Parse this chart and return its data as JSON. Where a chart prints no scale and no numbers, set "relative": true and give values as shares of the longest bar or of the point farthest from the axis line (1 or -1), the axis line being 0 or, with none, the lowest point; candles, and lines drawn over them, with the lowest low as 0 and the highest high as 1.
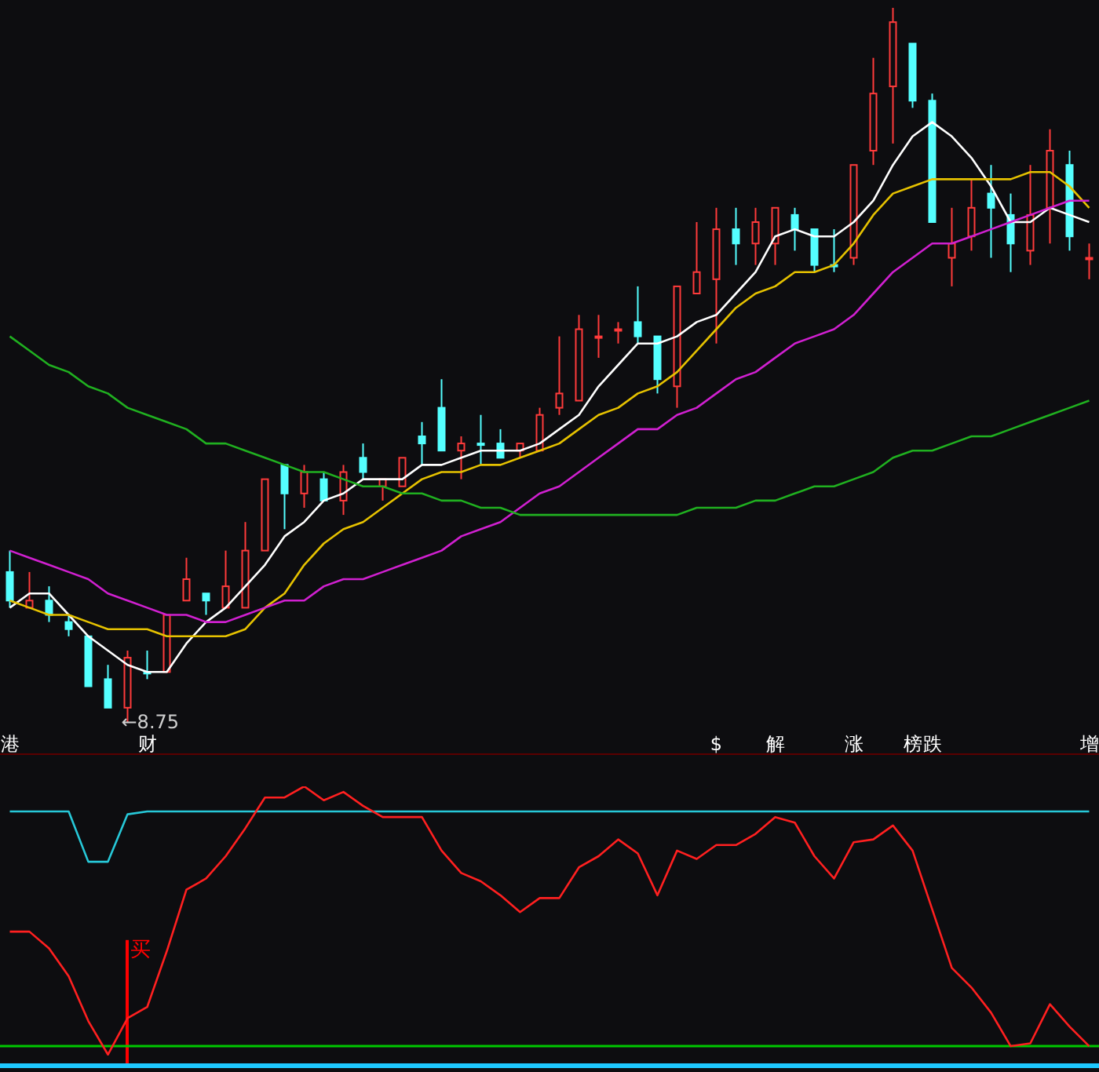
{
  "chart_data": [
    {
      "type": "candlestick",
      "relative": true,
      "tick_labels": "x",
      "categories": [
        "港",
        null,
        null,
        null,
        null,
        null,
        null,
        "财",
        null,
        null,
        null,
        null,
        null,
        null,
        null,
        null,
        null,
        null,
        null,
        null,
        null,
        null,
        null,
        null,
        null,
        null,
        null,
        null,
        null,
        null,
        null,
        null,
        null,
        null,
        null,
        null,
        "$",
        null,
        null,
        "解",
        null,
        null,
        null,
        "涨",
        null,
        null,
        "榜",
        "跌",
        null,
        null,
        null,
        null,
        null,
        null,
        null,
        "增"
      ],
      "ohlc": [
        [
          0.21,
          0.24,
          0.16,
          0.17
        ],
        [
          0.16,
          0.21,
          0.16,
          0.17
        ],
        [
          0.17,
          0.19,
          0.14,
          0.15
        ],
        [
          0.14,
          0.15,
          0.12,
          0.13
        ],
        [
          0.12,
          0.12,
          0.05,
          0.05
        ],
        [
          0.06,
          0.08,
          0.02,
          0.02
        ],
        [
          0.02,
          0.1,
          0,
          0.09
        ],
        [
          0.07,
          0.1,
          0.06,
          0.07
        ],
        [
          0.07,
          0.15,
          0.07,
          0.15
        ],
        [
          0.17,
          0.23,
          0.17,
          0.2
        ],
        [
          0.18,
          0.18,
          0.15,
          0.17
        ],
        [
          0.16,
          0.24,
          0.16,
          0.19
        ],
        [
          0.16,
          0.28,
          0.16,
          0.24
        ],
        [
          0.24,
          0.34,
          0.24,
          0.34
        ],
        [
          0.36,
          0.36,
          0.27,
          0.32
        ],
        [
          0.32,
          0.36,
          0.3,
          0.35
        ],
        [
          0.34,
          0.35,
          0.31,
          0.31
        ],
        [
          0.31,
          0.36,
          0.29,
          0.35
        ],
        [
          0.37,
          0.39,
          0.34,
          0.35
        ],
        [
          0.33,
          0.34,
          0.31,
          0.34
        ],
        [
          0.33,
          0.37,
          0.33,
          0.37
        ],
        [
          0.4,
          0.42,
          0.36,
          0.39
        ],
        [
          0.44,
          0.48,
          0.38,
          0.38
        ],
        [
          0.38,
          0.4,
          0.34,
          0.39
        ],
        [
          0.39,
          0.43,
          0.36,
          0.39
        ],
        [
          0.39,
          0.41,
          0.37,
          0.37
        ],
        [
          0.38,
          0.39,
          0.37,
          0.39
        ],
        [
          0.38,
          0.44,
          0.38,
          0.43
        ],
        [
          0.44,
          0.54,
          0.43,
          0.46
        ],
        [
          0.45,
          0.57,
          0.45,
          0.55
        ],
        [
          0.54,
          0.57,
          0.51,
          0.54
        ],
        [
          0.55,
          0.56,
          0.53,
          0.55
        ],
        [
          0.56,
          0.61,
          0.53,
          0.54
        ],
        [
          0.54,
          0.54,
          0.46,
          0.48
        ],
        [
          0.47,
          0.61,
          0.44,
          0.61
        ],
        [
          0.6,
          0.7,
          0.6,
          0.63
        ],
        [
          0.62,
          0.72,
          0.53,
          0.69
        ],
        [
          0.69,
          0.72,
          0.64,
          0.67
        ],
        [
          0.67,
          0.72,
          0.64,
          0.7
        ],
        [
          0.67,
          0.72,
          0.64,
          0.72
        ],
        [
          0.71,
          0.72,
          0.66,
          0.69
        ],
        [
          0.69,
          0.69,
          0.63,
          0.64
        ],
        [
          0.64,
          0.69,
          0.63,
          0.64
        ],
        [
          0.65,
          0.78,
          0.64,
          0.78
        ],
        [
          0.8,
          0.93,
          0.78,
          0.88
        ],
        [
          0.89,
          1,
          0.81,
          0.98
        ],
        [
          0.95,
          0.95,
          0.86,
          0.87
        ],
        [
          0.87,
          0.88,
          0.7,
          0.7
        ],
        [
          0.65,
          0.72,
          0.61,
          0.67
        ],
        [
          0.68,
          0.76,
          0.66,
          0.72
        ],
        [
          0.74,
          0.78,
          0.65,
          0.72
        ],
        [
          0.71,
          0.74,
          0.63,
          0.67
        ],
        [
          0.66,
          0.78,
          0.64,
          0.71
        ],
        [
          0.72,
          0.83,
          0.67,
          0.8
        ],
        [
          0.78,
          0.8,
          0.66,
          0.68
        ],
        [
          0.65,
          0.67,
          0.62,
          0.65
        ]
      ],
      "colors": [
        "#54ffff",
        "#ff3b3b",
        "#54ffff",
        "#54ffff",
        "#54ffff",
        "#54ffff",
        "#ff3b3b",
        "#54ffff",
        "#ff3b3b",
        "#ff3b3b",
        "#54ffff",
        "#ff3b3b",
        "#ff3b3b",
        "#ff3b3b",
        "#54ffff",
        "#ff3b3b",
        "#54ffff",
        "#ff3b3b",
        "#54ffff",
        "#ff3b3b",
        "#ff3b3b",
        "#54ffff",
        "#54ffff",
        "#ff3b3b",
        "#54ffff",
        "#54ffff",
        "#ff3b3b",
        "#ff3b3b",
        "#ff3b3b",
        "#ff3b3b",
        "#ff3b3b",
        "#ff3b3b",
        "#54ffff",
        "#54ffff",
        "#ff3b3b",
        "#ff3b3b",
        "#ff3b3b",
        "#54ffff",
        "#ff3b3b",
        "#ff3b3b",
        "#54ffff",
        "#54ffff",
        "#54ffff",
        "#ff3b3b",
        "#ff3b3b",
        "#ff3b3b",
        "#54ffff",
        "#54ffff",
        "#ff3b3b",
        "#ff3b3b",
        "#54ffff",
        "#54ffff",
        "#ff3b3b",
        "#ff3b3b",
        "#54ffff",
        "#ff3b3b"
      ],
      "series": [
        {
          "type": "line",
          "color": "#ffffff",
          "values": [
            0.16,
            0.18,
            0.18,
            0.15,
            0.12,
            0.1,
            0.08,
            0.07,
            0.07,
            0.11,
            0.14,
            0.16,
            0.19,
            0.22,
            0.26,
            0.28,
            0.31,
            0.32,
            0.34,
            0.34,
            0.34,
            0.36,
            0.36,
            0.37,
            0.38,
            0.38,
            0.38,
            0.39,
            0.41,
            0.43,
            0.47,
            0.5,
            0.53,
            0.53,
            0.54,
            0.56,
            0.57,
            0.6,
            0.63,
            0.68,
            0.69,
            0.68,
            0.68,
            0.7,
            0.73,
            0.78,
            0.82,
            0.84,
            0.82,
            0.79,
            0.75,
            0.7,
            0.7,
            0.72,
            0.71,
            0.7
          ]
        },
        {
          "type": "line",
          "color": "#e6c200",
          "values": [
            0.17,
            0.16,
            0.15,
            0.15,
            0.14,
            0.13,
            0.13,
            0.13,
            0.12,
            0.12,
            0.12,
            0.12,
            0.13,
            0.16,
            0.18,
            0.22,
            0.25,
            0.27,
            0.28,
            0.3,
            0.32,
            0.34,
            0.35,
            0.35,
            0.36,
            0.36,
            0.37,
            0.38,
            0.39,
            0.41,
            0.43,
            0.44,
            0.46,
            0.47,
            0.49,
            0.52,
            0.55,
            0.58,
            0.6,
            0.61,
            0.63,
            0.63,
            0.64,
            0.67,
            0.71,
            0.74,
            0.75,
            0.76,
            0.76,
            0.76,
            0.76,
            0.76,
            0.77,
            0.77,
            0.75,
            0.72
          ]
        },
        {
          "type": "line",
          "color": "#d020d0",
          "values": [
            0.24,
            0.23,
            0.22,
            0.21,
            0.2,
            0.18,
            0.17,
            0.16,
            0.15,
            0.15,
            0.14,
            0.14,
            0.15,
            0.16,
            0.17,
            0.17,
            0.19,
            0.2,
            0.2,
            0.21,
            0.22,
            0.23,
            0.24,
            0.26,
            0.27,
            0.28,
            0.3,
            0.32,
            0.33,
            0.35,
            0.37,
            0.39,
            0.41,
            0.41,
            0.43,
            0.44,
            0.46,
            0.48,
            0.49,
            0.51,
            0.53,
            0.54,
            0.55,
            0.57,
            0.6,
            0.63,
            0.65,
            0.67,
            0.67,
            0.68,
            0.69,
            0.7,
            0.71,
            0.72,
            0.73,
            0.73
          ]
        },
        {
          "type": "line",
          "color": "#20b020",
          "values": [
            0.54,
            0.52,
            0.5,
            0.49,
            0.47,
            0.46,
            0.44,
            0.43,
            0.42,
            0.41,
            0.39,
            0.39,
            0.38,
            0.37,
            0.36,
            0.35,
            0.35,
            0.34,
            0.33,
            0.33,
            0.32,
            0.32,
            0.31,
            0.31,
            0.3,
            0.3,
            0.29,
            0.29,
            0.29,
            0.29,
            0.29,
            0.29,
            0.29,
            0.29,
            0.29,
            0.3,
            0.3,
            0.3,
            0.31,
            0.31,
            0.32,
            0.33,
            0.33,
            0.34,
            0.35,
            0.37,
            0.38,
            0.38,
            0.39,
            0.4,
            0.4,
            0.41,
            0.42,
            0.43,
            0.44,
            0.45
          ]
        }
      ],
      "annotations": [
        "←8.75"
      ]
    },
    {
      "type": "line",
      "relative": true,
      "tick_labels": false,
      "categories": [
        null,
        null,
        null,
        null,
        null,
        null,
        null,
        null,
        null,
        null,
        null,
        null,
        null,
        null,
        null,
        null,
        null,
        null,
        null,
        null,
        null,
        null,
        null,
        null,
        null,
        null,
        null,
        null,
        null,
        null,
        null,
        null,
        null,
        null,
        null,
        null,
        null,
        null,
        null,
        null,
        null,
        null,
        null,
        null,
        null,
        null,
        null,
        null,
        null,
        null,
        null,
        null,
        null,
        null,
        null,
        null
      ],
      "series": [
        {
          "color": "#27c8d8",
          "values": [
            0.91,
            0.91,
            0.91,
            0.91,
            0.73,
            0.73,
            0.9,
            0.91,
            0.91,
            0.91,
            0.91,
            0.91,
            0.91,
            0.91,
            0.91,
            0.91,
            0.91,
            0.91,
            0.91,
            0.91,
            0.91,
            0.91,
            0.91,
            0.91,
            0.91,
            0.91,
            0.91,
            0.91,
            0.91,
            0.91,
            0.91,
            0.91,
            0.91,
            0.91,
            0.91,
            0.91,
            0.91,
            0.91,
            0.91,
            0.91,
            0.91,
            0.91,
            0.91,
            0.91,
            0.91,
            0.91,
            0.91,
            0.91,
            0.91,
            0.91,
            0.91,
            0.91,
            0.91,
            0.91,
            0.91,
            0.91
          ]
        },
        {
          "color": "#ff2020",
          "values": [
            0.48,
            0.48,
            0.42,
            0.32,
            0.16,
            0.04,
            0.17,
            0.21,
            0.41,
            0.63,
            0.67,
            0.75,
            0.85,
            0.96,
            0.96,
            1,
            0.95,
            0.98,
            0.93,
            0.89,
            0.89,
            0.89,
            0.77,
            0.69,
            0.66,
            0.61,
            0.55,
            0.6,
            0.6,
            0.71,
            0.75,
            0.81,
            0.76,
            0.61,
            0.77,
            0.74,
            0.79,
            0.79,
            0.83,
            0.89,
            0.87,
            0.75,
            0.67,
            0.8,
            0.81,
            0.86,
            0.77,
            0.56,
            0.35,
            0.28,
            0.19,
            0.07,
            0.08,
            0.22,
            0.14,
            0.07
          ]
        },
        {
          "type": "bar",
          "name": "买",
          "color": "#ff0000",
          "values": [
            null,
            null,
            null,
            null,
            null,
            null,
            0.45,
            null,
            null,
            null,
            null,
            null,
            null,
            null,
            null,
            null,
            null,
            null,
            null,
            null,
            null,
            null,
            null,
            null,
            null,
            null,
            null,
            null,
            null,
            null,
            null,
            null,
            null,
            null,
            null,
            null,
            null,
            null,
            null,
            null,
            null,
            null,
            null,
            null,
            null,
            null,
            null,
            null,
            null,
            null,
            null,
            null,
            null,
            null,
            null,
            null
          ]
        }
      ],
      "ref_lines": [
        {
          "axis": "y",
          "value": 0.07,
          "color": "#00c800"
        }
      ]
    }
  ]
}
